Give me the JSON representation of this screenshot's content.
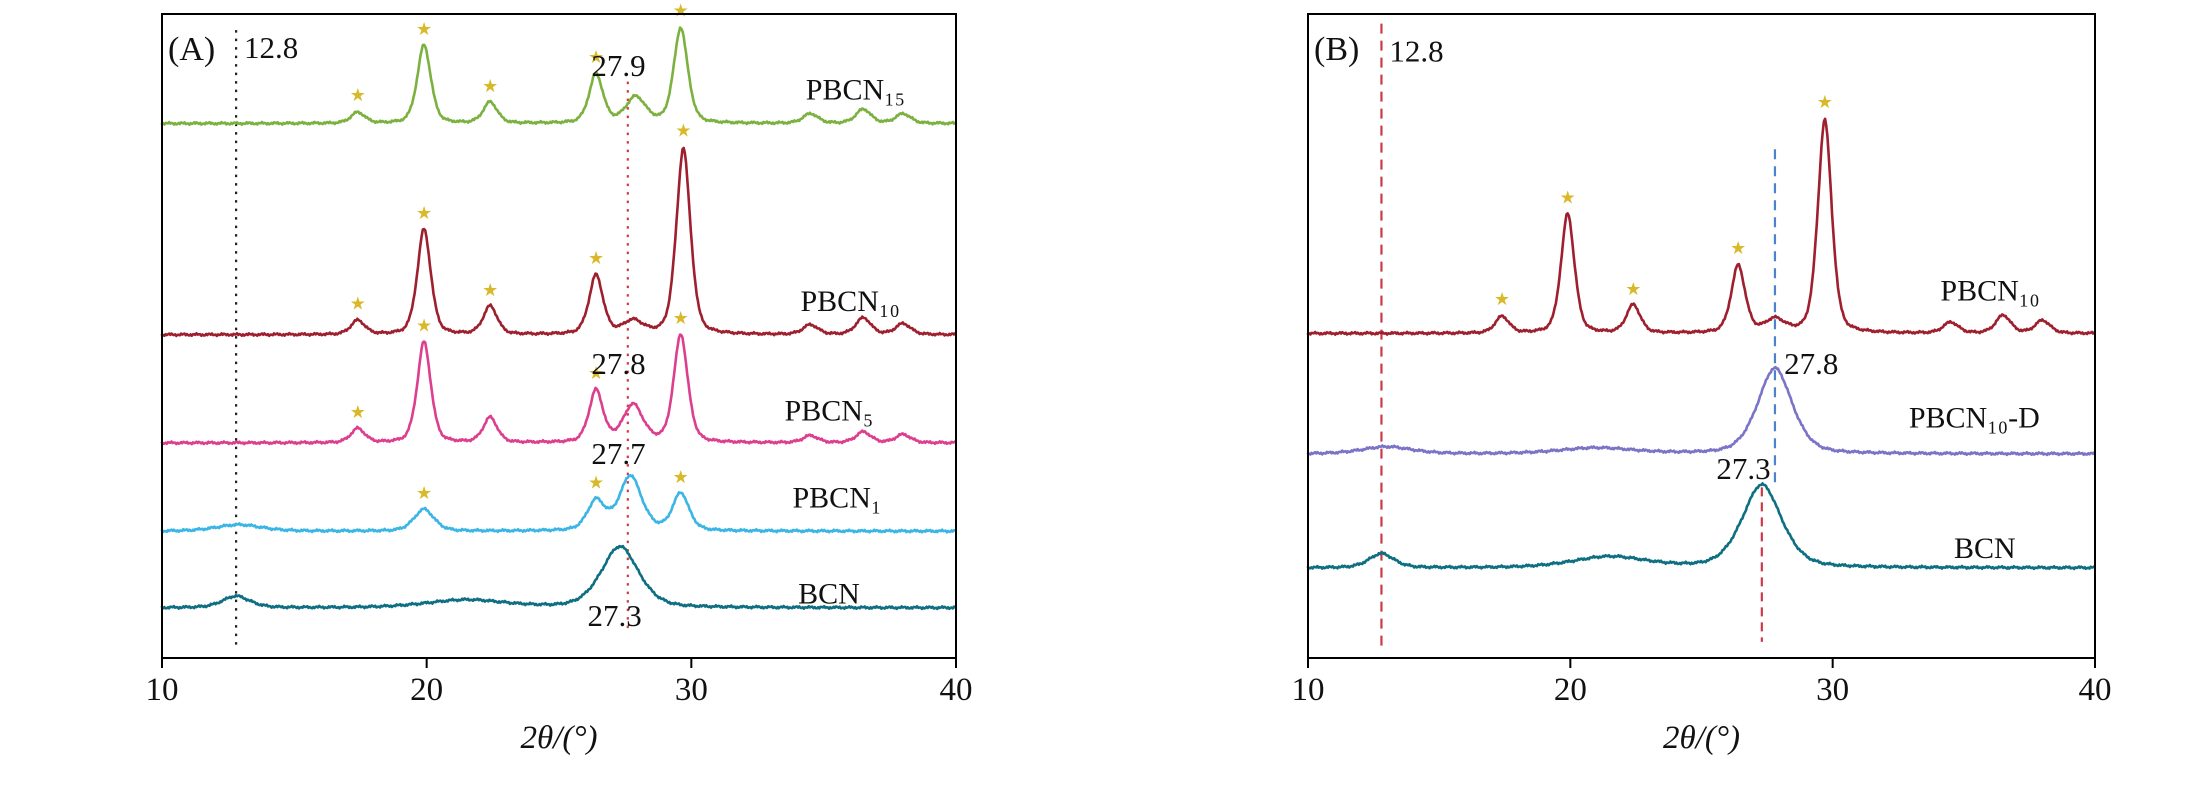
{
  "figure": {
    "description": "XRD patterns, two panels",
    "background": "#ffffff",
    "star_marker": "star-icon"
  },
  "chart_data": [
    {
      "panel_label": "(A)",
      "type": "line",
      "xlabel": "2θ/(°)",
      "xlim": [
        10,
        40
      ],
      "xticks": [
        "10",
        "20",
        "30",
        "40"
      ],
      "grid": false,
      "legend_position": "right-inline",
      "star_color": "#d9b92a",
      "series": [
        {
          "name": "PBCN₁₅",
          "color": "#7cb140",
          "baseline": 0.17,
          "label_x": 36.2,
          "label_y": 0.133,
          "peaks": [
            {
              "c": 17.4,
              "h": 0.017,
              "w": 0.28
            },
            {
              "c": 19.9,
              "h": 0.122,
              "w": 0.27
            },
            {
              "c": 22.4,
              "h": 0.033,
              "w": 0.28
            },
            {
              "c": 26.4,
              "h": 0.076,
              "w": 0.28
            },
            {
              "c": 27.9,
              "h": 0.04,
              "w": 0.4
            },
            {
              "c": 29.6,
              "h": 0.148,
              "w": 0.28
            },
            {
              "c": 34.5,
              "h": 0.015,
              "w": 0.3
            },
            {
              "c": 36.5,
              "h": 0.022,
              "w": 0.3
            },
            {
              "c": 38.0,
              "h": 0.015,
              "w": 0.3
            }
          ],
          "stars": [
            17.4,
            19.9,
            22.4,
            26.4,
            29.6
          ]
        },
        {
          "name": "PBCN₁₀",
          "color": "#9e1f2e",
          "baseline": 0.498,
          "label_x": 36.0,
          "label_y": 0.461,
          "peaks": [
            {
              "c": 17.4,
              "h": 0.022,
              "w": 0.28
            },
            {
              "c": 19.9,
              "h": 0.164,
              "w": 0.27
            },
            {
              "c": 22.4,
              "h": 0.044,
              "w": 0.28
            },
            {
              "c": 26.4,
              "h": 0.092,
              "w": 0.28
            },
            {
              "c": 27.8,
              "h": 0.02,
              "w": 0.4
            },
            {
              "c": 29.7,
              "h": 0.29,
              "w": 0.28
            },
            {
              "c": 34.5,
              "h": 0.015,
              "w": 0.3
            },
            {
              "c": 36.5,
              "h": 0.026,
              "w": 0.3
            },
            {
              "c": 38.0,
              "h": 0.017,
              "w": 0.3
            }
          ],
          "stars": [
            17.4,
            19.9,
            22.4,
            26.4,
            29.7
          ]
        },
        {
          "name": "PBCN₅",
          "color": "#dc3f8e",
          "baseline": 0.666,
          "label_x": 35.2,
          "label_y": 0.631,
          "peaks": [
            {
              "c": 17.4,
              "h": 0.022,
              "w": 0.28
            },
            {
              "c": 19.9,
              "h": 0.157,
              "w": 0.27
            },
            {
              "c": 22.4,
              "h": 0.039,
              "w": 0.28
            },
            {
              "c": 26.4,
              "h": 0.081,
              "w": 0.28
            },
            {
              "c": 27.8,
              "h": 0.058,
              "w": 0.4
            },
            {
              "c": 29.6,
              "h": 0.168,
              "w": 0.28
            },
            {
              "c": 34.5,
              "h": 0.011,
              "w": 0.3
            },
            {
              "c": 36.5,
              "h": 0.017,
              "w": 0.3
            },
            {
              "c": 38.0,
              "h": 0.013,
              "w": 0.3
            }
          ],
          "stars": [
            17.4,
            19.9,
            26.4,
            29.6
          ]
        },
        {
          "name": "PBCN₁",
          "color": "#3ab5e6",
          "baseline": 0.803,
          "label_x": 35.5,
          "label_y": 0.766,
          "peaks": [
            {
              "c": 12.9,
              "h": 0.01,
              "w": 0.9
            },
            {
              "c": 19.9,
              "h": 0.034,
              "w": 0.4
            },
            {
              "c": 26.4,
              "h": 0.046,
              "w": 0.35
            },
            {
              "c": 27.7,
              "h": 0.085,
              "w": 0.45
            },
            {
              "c": 29.6,
              "h": 0.058,
              "w": 0.33
            }
          ],
          "stars": [
            19.9,
            26.4,
            29.6
          ]
        },
        {
          "name": "BCN",
          "color": "#0f6f82",
          "baseline": 0.922,
          "label_x": 35.2,
          "label_y": 0.915,
          "peaks": [
            {
              "c": 12.8,
              "h": 0.018,
              "w": 0.55
            },
            {
              "c": 21.5,
              "h": 0.012,
              "w": 1.6
            },
            {
              "c": 27.3,
              "h": 0.095,
              "w": 0.75
            }
          ],
          "stars": []
        }
      ],
      "ref_lines": [
        {
          "x": 12.8,
          "color": "#222222",
          "dash": "2.5 6",
          "y0": 0.025,
          "y1": 0.985
        },
        {
          "x": 27.6,
          "color": "#d23b3b",
          "dash": "2.5 6",
          "y0": 0.105,
          "y1": 0.96
        }
      ],
      "annotations": [
        {
          "text": "12.8",
          "x": 13.1,
          "y": 0.068,
          "anchor": "start"
        },
        {
          "text": "27.9",
          "x": 27.25,
          "y": 0.096,
          "anchor": "middle"
        },
        {
          "text": "27.8",
          "x": 27.25,
          "y": 0.559,
          "anchor": "middle"
        },
        {
          "text": "27.7",
          "x": 27.25,
          "y": 0.699,
          "anchor": "middle"
        },
        {
          "text": "27.3",
          "x": 27.1,
          "y": 0.95,
          "anchor": "middle"
        }
      ]
    },
    {
      "panel_label": "(B)",
      "type": "line",
      "xlabel": "2θ/(°)",
      "xlim": [
        10,
        40
      ],
      "xticks": [
        "10",
        "20",
        "30",
        "40"
      ],
      "grid": false,
      "legend_position": "right-inline",
      "star_color": "#d9b92a",
      "series": [
        {
          "name": "PBCN₁₀",
          "color": "#9e1f2e",
          "baseline": 0.496,
          "label_x": 36.0,
          "label_y": 0.445,
          "peaks": [
            {
              "c": 17.4,
              "h": 0.026,
              "w": 0.28
            },
            {
              "c": 19.9,
              "h": 0.186,
              "w": 0.27
            },
            {
              "c": 22.4,
              "h": 0.044,
              "w": 0.28
            },
            {
              "c": 26.4,
              "h": 0.105,
              "w": 0.28
            },
            {
              "c": 27.8,
              "h": 0.02,
              "w": 0.4
            },
            {
              "c": 29.7,
              "h": 0.332,
              "w": 0.28
            },
            {
              "c": 34.5,
              "h": 0.017,
              "w": 0.3
            },
            {
              "c": 36.5,
              "h": 0.028,
              "w": 0.3
            },
            {
              "c": 38.0,
              "h": 0.02,
              "w": 0.3
            }
          ],
          "stars": [
            17.4,
            19.9,
            22.4,
            26.4,
            29.7
          ]
        },
        {
          "name": "PBCN₁₀-D",
          "color": "#7b74c6",
          "baseline": 0.683,
          "label_x": 35.4,
          "label_y": 0.642,
          "peaks": [
            {
              "c": 13.0,
              "h": 0.011,
              "w": 1.0
            },
            {
              "c": 21.0,
              "h": 0.009,
              "w": 1.5
            },
            {
              "c": 27.8,
              "h": 0.133,
              "w": 0.7
            }
          ],
          "stars": []
        },
        {
          "name": "BCN",
          "color": "#0f6f82",
          "baseline": 0.86,
          "label_x": 35.8,
          "label_y": 0.845,
          "peaks": [
            {
              "c": 12.8,
              "h": 0.022,
              "w": 0.5
            },
            {
              "c": 21.5,
              "h": 0.017,
              "w": 1.5
            },
            {
              "c": 27.3,
              "h": 0.129,
              "w": 0.8
            }
          ],
          "stars": []
        }
      ],
      "ref_lines": [
        {
          "x": 12.8,
          "color": "#cc3a4a",
          "dash": "10 7",
          "y0": 0.015,
          "y1": 0.985
        },
        {
          "x": 27.8,
          "color": "#4d82cc",
          "dash": "10 7",
          "y0": 0.21,
          "y1": 0.735
        },
        {
          "x": 27.3,
          "color": "#cc3a4a",
          "dash": "9 6",
          "y0": 0.735,
          "y1": 0.975
        }
      ],
      "annotations": [
        {
          "text": "12.8",
          "x": 13.1,
          "y": 0.074,
          "anchor": "start"
        },
        {
          "text": "27.8",
          "x": 28.15,
          "y": 0.559,
          "anchor": "start"
        },
        {
          "text": "27.3",
          "x": 26.6,
          "y": 0.722,
          "anchor": "middle"
        }
      ]
    }
  ]
}
